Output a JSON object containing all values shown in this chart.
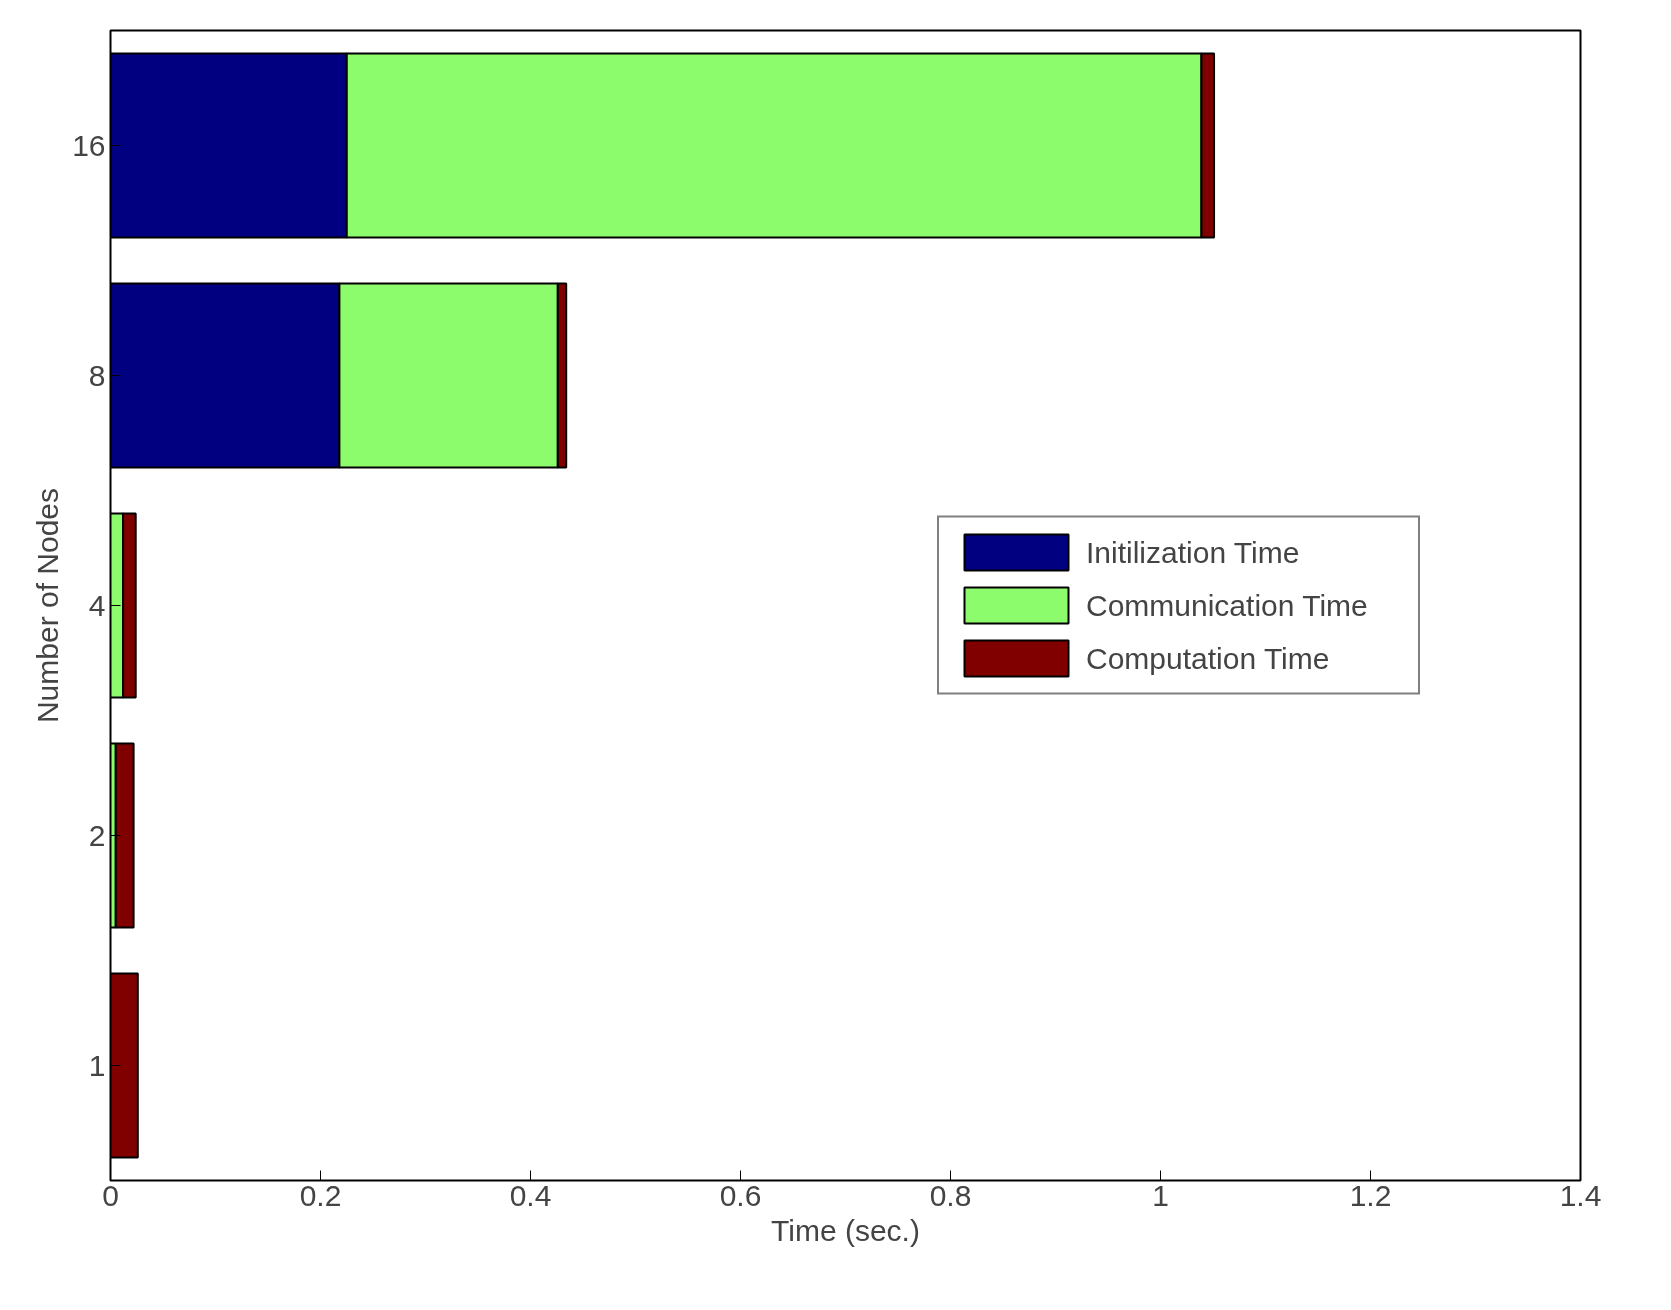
{
  "chart_data": {
    "type": "bar",
    "orientation": "horizontal",
    "stacked": true,
    "xlabel": "Time (sec.)",
    "ylabel": "Number of Nodes",
    "categories": [
      "16",
      "8",
      "4",
      "2",
      "1"
    ],
    "series": [
      {
        "name": "Initilization Time",
        "color": "#000080",
        "values": [
          0.225,
          0.218,
          null,
          null,
          null
        ]
      },
      {
        "name": "Communication Time",
        "color": "#8cfb6c",
        "values": [
          0.814,
          0.208,
          0.012,
          0.005,
          0.0
        ]
      },
      {
        "name": "Computation Time",
        "color": "#800000",
        "values": [
          0.012,
          0.008,
          0.012,
          0.017,
          0.026
        ]
      }
    ],
    "xlim": [
      0,
      1.4
    ],
    "xticks": [
      0,
      0.2,
      0.4,
      0.6,
      0.8,
      1,
      1.2,
      1.4
    ],
    "grid": false,
    "legend": "right"
  }
}
